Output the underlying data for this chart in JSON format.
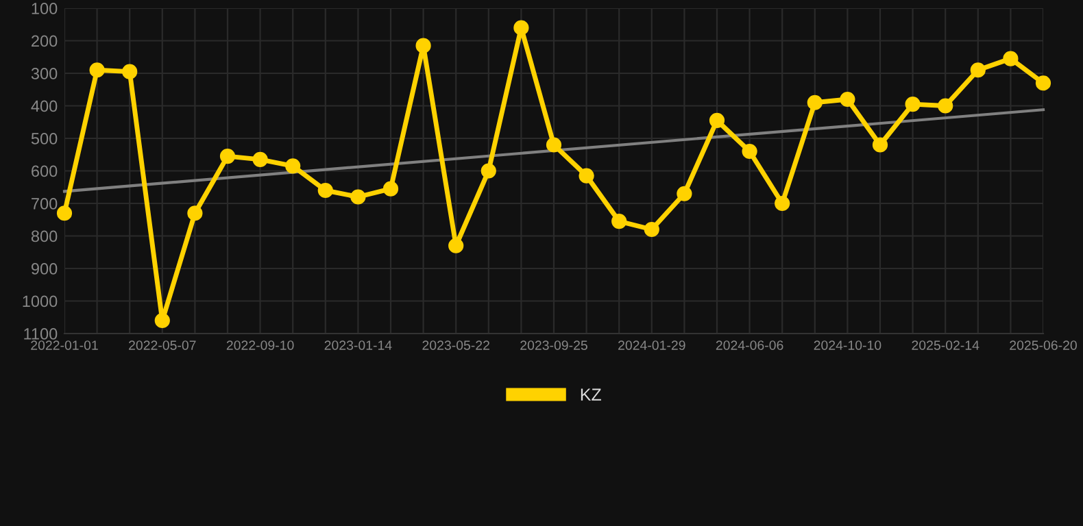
{
  "chart_data": {
    "type": "line",
    "categories": [
      "2022-01-01",
      null,
      null,
      "2022-05-07",
      null,
      null,
      "2022-09-10",
      null,
      null,
      "2023-01-14",
      null,
      null,
      "2023-05-22",
      null,
      null,
      "2023-09-25",
      null,
      null,
      "2024-01-29",
      null,
      null,
      "2024-06-06",
      null,
      null,
      "2024-10-10",
      null,
      null,
      "2025-02-14",
      null,
      null,
      "2025-06-20"
    ],
    "series": [
      {
        "name": "KZ",
        "color": "#ffd200",
        "marker": "circle",
        "values": [
          730,
          290,
          295,
          1060,
          730,
          555,
          565,
          585,
          660,
          680,
          655,
          215,
          830,
          600,
          160,
          520,
          615,
          755,
          780,
          670,
          445,
          540,
          700,
          390,
          380,
          520,
          395,
          400,
          290,
          255,
          330
        ]
      },
      {
        "type": "line",
        "color": "#808080",
        "marker": "none",
        "values": [
          663,
          null,
          null,
          null,
          null,
          null,
          null,
          null,
          null,
          null,
          null,
          null,
          null,
          null,
          null,
          null,
          null,
          null,
          null,
          null,
          null,
          null,
          null,
          null,
          null,
          null,
          null,
          null,
          null,
          null,
          412
        ]
      }
    ],
    "ylim": [
      1100,
      100
    ],
    "yticks": [
      100,
      200,
      300,
      400,
      500,
      600,
      700,
      800,
      900,
      1000,
      1100
    ],
    "grid": true,
    "legend": "bottom"
  }
}
